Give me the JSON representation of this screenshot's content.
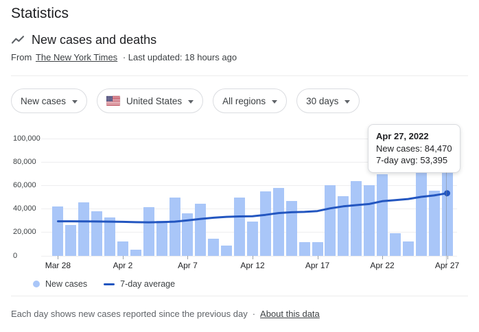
{
  "header": {
    "title": "Statistics",
    "subtitle": "New cases and deaths",
    "source_prefix": "From",
    "source_link": "The New York Times",
    "source_suffix": "· Last updated: 18 hours ago"
  },
  "filters": [
    {
      "label": "New cases"
    },
    {
      "label": "United States",
      "flag": "us-flag"
    },
    {
      "label": "All regions"
    },
    {
      "label": "30 days"
    }
  ],
  "tooltip": {
    "title": "Apr 27, 2022",
    "line1": "New cases: 84,470",
    "line2": "7-day avg: 53,395"
  },
  "legend": {
    "items": [
      {
        "label": "New cases",
        "marker": "dot",
        "color": "#a9c6f8"
      },
      {
        "label": "7-day average",
        "marker": "dash",
        "color": "#2356c0"
      }
    ]
  },
  "footer": {
    "text": "Each day shows new cases reported since the previous day",
    "separator": "·",
    "link": "About this data"
  },
  "colors": {
    "bar": "#a9c6f8",
    "line": "#2356c0",
    "grid": "#ededef",
    "dotted_guide": "#80868b"
  },
  "chart_data": {
    "type": "bar",
    "title": "New cases and deaths — United States — 30 days",
    "xlabel": "",
    "ylabel": "New cases",
    "grid": true,
    "legend_position": "bottom",
    "ylim": [
      0,
      100000
    ],
    "y_ticks": [
      0,
      20000,
      40000,
      60000,
      80000,
      100000
    ],
    "y_tick_labels": [
      "0",
      "20,000",
      "40,000",
      "60,000",
      "80,000",
      "100,000"
    ],
    "x": [
      "Mar 28",
      "Mar 29",
      "Mar 30",
      "Mar 31",
      "Apr 1",
      "Apr 2",
      "Apr 3",
      "Apr 4",
      "Apr 5",
      "Apr 6",
      "Apr 7",
      "Apr 8",
      "Apr 9",
      "Apr 10",
      "Apr 11",
      "Apr 12",
      "Apr 13",
      "Apr 14",
      "Apr 15",
      "Apr 16",
      "Apr 17",
      "Apr 18",
      "Apr 19",
      "Apr 20",
      "Apr 21",
      "Apr 22",
      "Apr 23",
      "Apr 24",
      "Apr 25",
      "Apr 26",
      "Apr 27"
    ],
    "x_tick_labels": [
      "Mar 28",
      "Apr 2",
      "Apr 7",
      "Apr 12",
      "Apr 17",
      "Apr 22",
      "Apr 27"
    ],
    "x_tick_indices": [
      0,
      5,
      10,
      15,
      20,
      25,
      30
    ],
    "series": [
      {
        "name": "New cases",
        "type": "bar",
        "values": [
          42000,
          26500,
          45500,
          38000,
          33000,
          12000,
          5500,
          41500,
          30000,
          50000,
          36000,
          44500,
          14500,
          8800,
          50000,
          29000,
          55000,
          58000,
          47000,
          11700,
          11700,
          60500,
          51000,
          63500,
          60000,
          69500,
          19500,
          12300,
          75000,
          55500,
          84470
        ]
      },
      {
        "name": "7-day average",
        "type": "line",
        "values": [
          29500,
          29500,
          29400,
          29300,
          29200,
          29000,
          28700,
          28600,
          28800,
          29200,
          30300,
          31500,
          32500,
          33300,
          33600,
          33800,
          35000,
          36500,
          37200,
          37500,
          38200,
          40500,
          42200,
          43300,
          44200,
          46600,
          47500,
          48500,
          50300,
          51500,
          53395
        ]
      }
    ],
    "highlight_index": 30,
    "highlight_date": "Apr 27, 2022"
  }
}
